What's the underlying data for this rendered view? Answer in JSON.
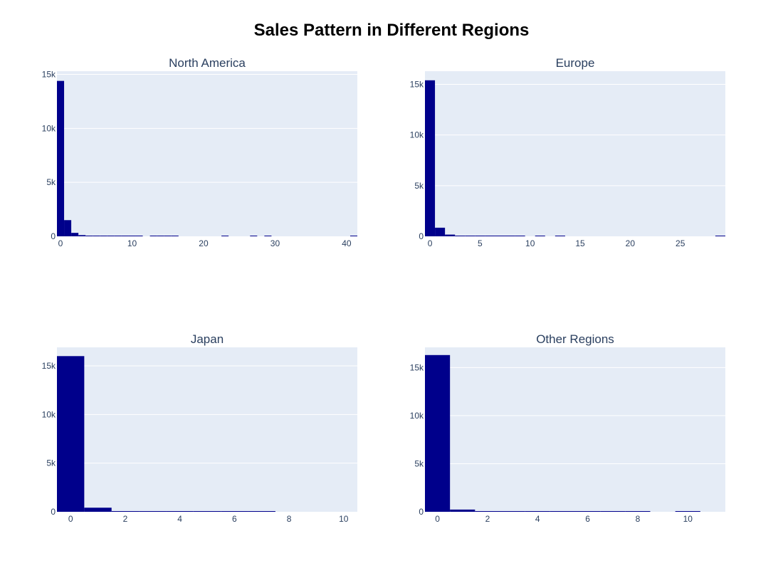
{
  "title": "Sales Pattern in Different Regions",
  "colors": {
    "bar": "#00008b",
    "plot_bg": "#e5ecf6",
    "grid": "#ffffff",
    "text": "#2a3f5f"
  },
  "chart_data": [
    {
      "type": "histogram",
      "title": "North America",
      "xlim": [
        -0.5,
        41.5
      ],
      "ylim": [
        0,
        15300
      ],
      "xticks": [
        0,
        10,
        20,
        30,
        40
      ],
      "yticks": [
        0,
        5000,
        10000,
        15000
      ],
      "ytick_labels": [
        "0",
        "5k",
        "10k",
        "15k"
      ],
      "bin_width": 1,
      "bins": [
        [
          -0.5,
          14400
        ],
        [
          0.5,
          1500
        ],
        [
          1.5,
          320
        ],
        [
          2.5,
          110
        ],
        [
          3.5,
          45
        ],
        [
          4.5,
          25
        ],
        [
          5.5,
          14
        ],
        [
          6.5,
          10
        ],
        [
          7.5,
          8
        ],
        [
          8.5,
          6
        ],
        [
          9.5,
          5
        ],
        [
          10.5,
          4
        ],
        [
          12.5,
          3
        ],
        [
          13.5,
          2
        ],
        [
          14.5,
          2
        ],
        [
          15.5,
          1
        ],
        [
          22.5,
          1
        ],
        [
          26.5,
          1
        ],
        [
          28.5,
          1
        ],
        [
          40.5,
          1
        ]
      ]
    },
    {
      "type": "histogram",
      "title": "Europe",
      "xlim": [
        -0.5,
        29.5
      ],
      "ylim": [
        0,
        16300
      ],
      "xticks": [
        0,
        5,
        10,
        15,
        20,
        25
      ],
      "yticks": [
        0,
        5000,
        10000,
        15000
      ],
      "ytick_labels": [
        "0",
        "5k",
        "10k",
        "15k"
      ],
      "bin_width": 1,
      "bins": [
        [
          -0.5,
          15400
        ],
        [
          0.5,
          850
        ],
        [
          1.5,
          170
        ],
        [
          2.5,
          60
        ],
        [
          3.5,
          25
        ],
        [
          4.5,
          12
        ],
        [
          5.5,
          8
        ],
        [
          6.5,
          5
        ],
        [
          7.5,
          4
        ],
        [
          8.5,
          3
        ],
        [
          10.5,
          2
        ],
        [
          12.5,
          1
        ],
        [
          28.5,
          1
        ]
      ]
    },
    {
      "type": "histogram",
      "title": "Japan",
      "xlim": [
        -0.5,
        10.5
      ],
      "ylim": [
        0,
        16900
      ],
      "xticks": [
        0,
        2,
        4,
        6,
        8,
        10
      ],
      "yticks": [
        0,
        5000,
        10000,
        15000
      ],
      "ytick_labels": [
        "0",
        "5k",
        "10k",
        "15k"
      ],
      "bin_width": 1,
      "bins": [
        [
          -0.5,
          16000
        ],
        [
          0.5,
          420
        ],
        [
          1.5,
          70
        ],
        [
          2.5,
          20
        ],
        [
          3.5,
          8
        ],
        [
          4.5,
          4
        ],
        [
          5.5,
          2
        ],
        [
          6.5,
          1
        ]
      ]
    },
    {
      "type": "histogram",
      "title": "Other Regions",
      "xlim": [
        -0.5,
        11.5
      ],
      "ylim": [
        0,
        17100
      ],
      "xticks": [
        0,
        2,
        4,
        6,
        8,
        10
      ],
      "yticks": [
        0,
        5000,
        10000,
        15000
      ],
      "ytick_labels": [
        "0",
        "5k",
        "10k",
        "15k"
      ],
      "bin_width": 1,
      "bins": [
        [
          -0.5,
          16300
        ],
        [
          0.5,
          230
        ],
        [
          1.5,
          30
        ],
        [
          2.5,
          8
        ],
        [
          3.5,
          3
        ],
        [
          4.5,
          2
        ],
        [
          5.5,
          1
        ],
        [
          6.5,
          1
        ],
        [
          7.5,
          1
        ],
        [
          9.5,
          1
        ]
      ]
    }
  ]
}
